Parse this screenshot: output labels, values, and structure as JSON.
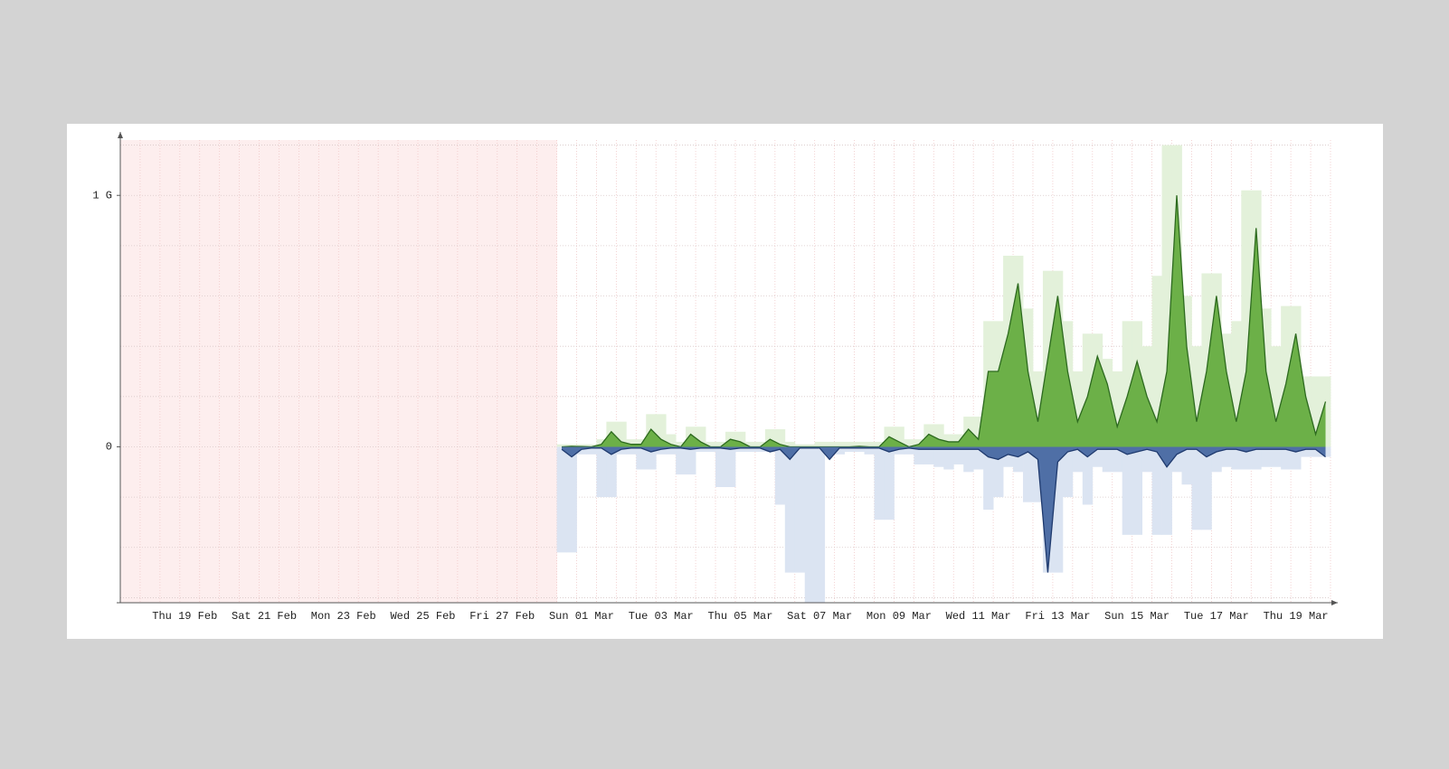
{
  "chart_data": {
    "type": "area",
    "categories": [
      null,
      null,
      null,
      null,
      null,
      null,
      "Thu 19 Feb",
      null,
      null,
      null,
      null,
      null,
      null,
      null,
      "Sat 21 Feb",
      null,
      null,
      null,
      null,
      null,
      null,
      null,
      "Mon 23 Feb",
      null,
      null,
      null,
      null,
      null,
      null,
      null,
      "Wed 25 Feb",
      null,
      null,
      null,
      null,
      null,
      null,
      null,
      "Fri 27 Feb",
      null,
      null,
      null,
      null,
      null,
      null,
      null,
      "Sun 01 Mar",
      null,
      null,
      null,
      null,
      null,
      null,
      null,
      "Tue 03 Mar",
      null,
      null,
      null,
      null,
      null,
      null,
      null,
      "Thu 05 Mar",
      null,
      null,
      null,
      null,
      null,
      null,
      null,
      "Sat 07 Mar",
      null,
      null,
      null,
      null,
      null,
      null,
      null,
      "Mon 09 Mar",
      null,
      null,
      null,
      null,
      null,
      null,
      null,
      "Wed 11 Mar",
      null,
      null,
      null,
      null,
      null,
      null,
      null,
      "Fri 13 Mar",
      null,
      null,
      null,
      null,
      null,
      null,
      null,
      "Sun 15 Mar",
      null,
      null,
      null,
      null,
      null,
      null,
      null,
      "Tue 17 Mar",
      null,
      null,
      null,
      null,
      null,
      null,
      null,
      "Thu 19 Mar",
      null,
      null,
      null
    ],
    "series": [
      {
        "color": "#6cb048",
        "stroke": "#2d6a1f",
        "values": [
          null,
          null,
          null,
          null,
          null,
          null,
          null,
          null,
          null,
          null,
          null,
          null,
          null,
          null,
          null,
          null,
          null,
          null,
          null,
          null,
          null,
          null,
          null,
          null,
          null,
          null,
          null,
          null,
          null,
          null,
          null,
          null,
          null,
          null,
          null,
          null,
          null,
          null,
          null,
          null,
          null,
          null,
          null,
          null,
          0,
          2000000.0,
          1000000.0,
          0,
          10000000.0,
          60000000.0,
          20000000.0,
          10000000.0,
          10000000.0,
          70000000.0,
          30000000.0,
          10000000.0,
          0,
          50000000.0,
          20000000.0,
          0,
          0,
          30000000.0,
          20000000.0,
          0,
          0,
          30000000.0,
          10000000.0,
          0,
          0,
          0,
          0,
          0,
          0,
          0,
          2000000.0,
          0,
          0,
          40000000.0,
          20000000.0,
          0,
          10000000.0,
          50000000.0,
          30000000.0,
          20000000.0,
          20000000.0,
          70000000.0,
          30000000.0,
          300000000.0,
          300000000.0,
          450000000.0,
          650000000.0,
          300000000.0,
          100000000.0,
          350000000.0,
          600000000.0,
          300000000.0,
          100000000.0,
          200000000.0,
          360000000.0,
          250000000.0,
          80000000.0,
          200000000.0,
          340000000.0,
          200000000.0,
          100000000.0,
          300000000.0,
          1000000000.0,
          400000000.0,
          100000000.0,
          300000000.0,
          600000000.0,
          300000000.0,
          100000000.0,
          300000000.0,
          870000000.0,
          300000000.0,
          100000000.0,
          250000000.0,
          450000000.0,
          200000000.0,
          50000000.0,
          180000000.0
        ]
      },
      {
        "color": "#4f6fa6",
        "stroke": "#1f3a6e",
        "values": [
          null,
          null,
          null,
          null,
          null,
          null,
          null,
          null,
          null,
          null,
          null,
          null,
          null,
          null,
          null,
          null,
          null,
          null,
          null,
          null,
          null,
          null,
          null,
          null,
          null,
          null,
          null,
          null,
          null,
          null,
          null,
          null,
          null,
          null,
          null,
          null,
          null,
          null,
          null,
          null,
          null,
          null,
          null,
          null,
          -10000000.0,
          -40000000.0,
          -10000000.0,
          -5000000.0,
          -5000000.0,
          -30000000.0,
          -10000000.0,
          -5000000.0,
          -5000000.0,
          -20000000.0,
          -10000000.0,
          -5000000.0,
          -5000000.0,
          -10000000.0,
          -5000000.0,
          -5000000.0,
          -5000000.0,
          -10000000.0,
          -5000000.0,
          -5000000.0,
          -5000000.0,
          -20000000.0,
          -10000000.0,
          -50000000.0,
          -5000000.0,
          -5000000.0,
          -5000000.0,
          -50000000.0,
          -5000000.0,
          -5000000.0,
          -5000000.0,
          -5000000.0,
          -5000000.0,
          -20000000.0,
          -10000000.0,
          -5000000.0,
          -10000000.0,
          -10000000.0,
          -10000000.0,
          -10000000.0,
          -10000000.0,
          -10000000.0,
          -10000000.0,
          -40000000.0,
          -50000000.0,
          -30000000.0,
          -40000000.0,
          -20000000.0,
          -50000000.0,
          -500000000.0,
          -60000000.0,
          -20000000.0,
          -10000000.0,
          -40000000.0,
          -10000000.0,
          -10000000.0,
          -10000000.0,
          -30000000.0,
          -20000000.0,
          -10000000.0,
          -20000000.0,
          -80000000.0,
          -30000000.0,
          -10000000.0,
          -10000000.0,
          -40000000.0,
          -20000000.0,
          -10000000.0,
          -10000000.0,
          -20000000.0,
          -10000000.0,
          -10000000.0,
          -10000000.0,
          -10000000.0,
          -20000000.0,
          -10000000.0,
          -10000000.0,
          -40000000.0
        ]
      },
      {
        "color": "#e3f1da",
        "style": "max",
        "values": [
          null,
          null,
          null,
          null,
          null,
          null,
          null,
          null,
          null,
          null,
          null,
          null,
          null,
          null,
          null,
          null,
          null,
          null,
          null,
          null,
          null,
          null,
          null,
          null,
          null,
          null,
          null,
          null,
          null,
          null,
          null,
          null,
          null,
          null,
          null,
          null,
          null,
          null,
          null,
          null,
          null,
          null,
          null,
          null,
          10000000.0,
          10000000.0,
          10000000.0,
          10000000.0,
          30000000.0,
          100000000.0,
          100000000.0,
          30000000.0,
          30000000.0,
          130000000.0,
          130000000.0,
          50000000.0,
          20000000.0,
          80000000.0,
          80000000.0,
          20000000.0,
          20000000.0,
          60000000.0,
          60000000.0,
          20000000.0,
          20000000.0,
          70000000.0,
          70000000.0,
          20000000.0,
          10000000.0,
          10000000.0,
          20000000.0,
          20000000.0,
          20000000.0,
          20000000.0,
          20000000.0,
          20000000.0,
          20000000.0,
          80000000.0,
          80000000.0,
          30000000.0,
          30000000.0,
          90000000.0,
          90000000.0,
          50000000.0,
          50000000.0,
          120000000.0,
          120000000.0,
          500000000.0,
          500000000.0,
          760000000.0,
          760000000.0,
          550000000.0,
          300000000.0,
          700000000.0,
          700000000.0,
          500000000.0,
          300000000.0,
          450000000.0,
          450000000.0,
          350000000.0,
          300000000.0,
          500000000.0,
          500000000.0,
          400000000.0,
          680000000.0,
          1200000000.0,
          1200000000.0,
          600000000.0,
          400000000.0,
          690000000.0,
          690000000.0,
          450000000.0,
          500000000.0,
          1020000000.0,
          1020000000.0,
          550000000.0,
          400000000.0,
          560000000.0,
          560000000.0,
          280000000.0,
          280000000.0,
          280000000.0
        ]
      },
      {
        "color": "#dbe4f2",
        "style": "max",
        "values": [
          null,
          null,
          null,
          null,
          null,
          null,
          null,
          null,
          null,
          null,
          null,
          null,
          null,
          null,
          null,
          null,
          null,
          null,
          null,
          null,
          null,
          null,
          null,
          null,
          null,
          null,
          null,
          null,
          null,
          null,
          null,
          null,
          null,
          null,
          null,
          null,
          null,
          null,
          null,
          null,
          null,
          null,
          null,
          null,
          -420000000.0,
          -420000000.0,
          -30000000.0,
          -30000000.0,
          -200000000.0,
          -200000000.0,
          -30000000.0,
          -30000000.0,
          -90000000.0,
          -90000000.0,
          -30000000.0,
          -30000000.0,
          -110000000.0,
          -110000000.0,
          -20000000.0,
          -20000000.0,
          -160000000.0,
          -160000000.0,
          -20000000.0,
          -20000000.0,
          -20000000.0,
          -20000000.0,
          -230000000.0,
          -500000000.0,
          -500000000.0,
          -620000000.0,
          -620000000.0,
          -30000000.0,
          -30000000.0,
          -20000000.0,
          -20000000.0,
          -30000000.0,
          -290000000.0,
          -290000000.0,
          -30000000.0,
          -30000000.0,
          -70000000.0,
          -70000000.0,
          -80000000.0,
          -90000000.0,
          -70000000.0,
          -100000000.0,
          -90000000.0,
          -250000000.0,
          -200000000.0,
          -80000000.0,
          -100000000.0,
          -220000000.0,
          -220000000.0,
          -500000000.0,
          -500000000.0,
          -200000000.0,
          -100000000.0,
          -230000000.0,
          -80000000.0,
          -100000000.0,
          -100000000.0,
          -350000000.0,
          -350000000.0,
          -100000000.0,
          -350000000.0,
          -350000000.0,
          -100000000.0,
          -150000000.0,
          -330000000.0,
          -330000000.0,
          -100000000.0,
          -80000000.0,
          -90000000.0,
          -90000000.0,
          -90000000.0,
          -80000000.0,
          -80000000.0,
          -90000000.0,
          -90000000.0,
          -40000000.0,
          -40000000.0,
          -40000000.0
        ]
      }
    ],
    "ylim": [
      -620000000.0,
      1220000000.0
    ],
    "yticks": [
      0,
      {
        "value": 1000000000,
        "label": "1 G"
      }
    ],
    "minor_yticks": [
      -600000000.0,
      -400000000.0,
      -200000000.0,
      200000000.0,
      400000000.0,
      600000000.0,
      800000000.0,
      1200000000.0
    ],
    "grid": true,
    "nodata_color": "#fdeeee"
  }
}
